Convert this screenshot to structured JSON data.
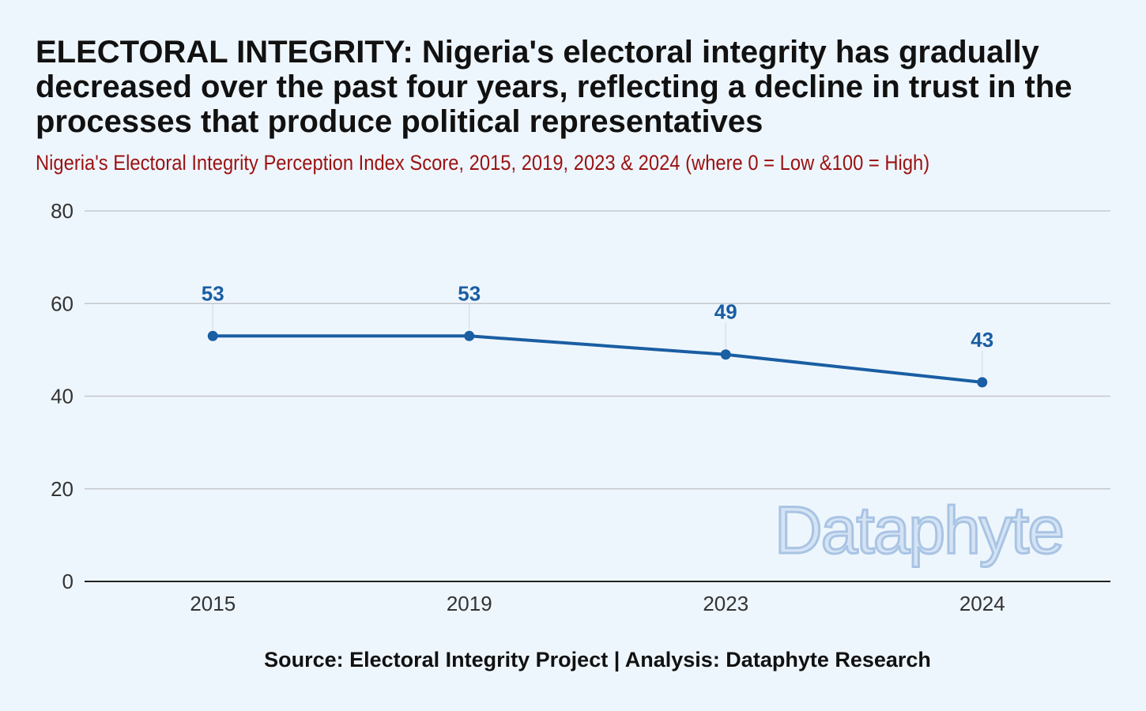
{
  "title": "ELECTORAL INTEGRITY: Nigeria's electoral integrity has gradually decreased over the past four years, reflecting a decline in trust in the processes that produce political representatives",
  "subtitle": "Nigeria's Electoral  Integrity Perception Index Score, 2015, 2019, 2023 & 2024 (where 0 = Low &100 = High)",
  "source": "Source: Electoral Integrity Project | Analysis: Dataphyte Research",
  "watermark": "Dataphyte",
  "colors": {
    "line": "#1a5ea3",
    "title": "#111111",
    "subtitle": "#9b1111",
    "grid": "#c4c8cc",
    "background": "#eef6fd"
  },
  "chart_data": {
    "type": "line",
    "categories": [
      "2015",
      "2019",
      "2023",
      "2024"
    ],
    "series": [
      {
        "values": [
          53,
          53,
          49,
          43
        ]
      }
    ],
    "data_labels": [
      "53",
      "53",
      "49",
      "43"
    ],
    "ylim": [
      0,
      80
    ],
    "yticks": [
      0,
      20,
      40,
      60,
      80
    ],
    "grid": true,
    "xlabel": "",
    "ylabel": ""
  }
}
